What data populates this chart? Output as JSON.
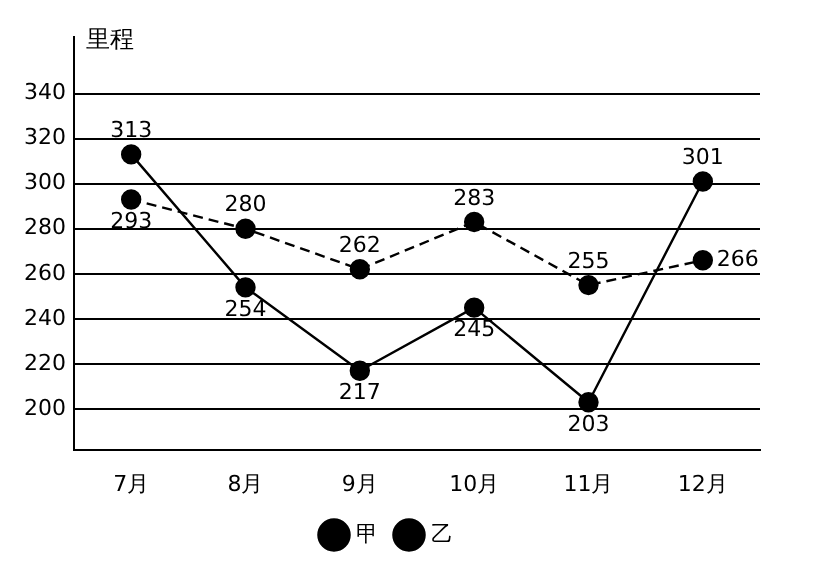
{
  "chart_data": {
    "type": "line",
    "ylabel": "里程",
    "categories": [
      "7月",
      "8月",
      "9月",
      "10月",
      "11月",
      "12月"
    ],
    "series": [
      {
        "name": "甲",
        "color": "#000000",
        "values": [
          313,
          254,
          217,
          245,
          203,
          301
        ],
        "line_style": "solid"
      },
      {
        "name": "乙",
        "color": "#000000",
        "values": [
          293,
          280,
          262,
          283,
          255,
          266
        ],
        "line_style": "dashed"
      }
    ],
    "ylim": [
      182,
      365
    ],
    "yticks": [
      200,
      220,
      240,
      260,
      280,
      300,
      320,
      340
    ],
    "grid": "y",
    "legend": "bottom",
    "marker": "circle",
    "data_labels": true
  }
}
